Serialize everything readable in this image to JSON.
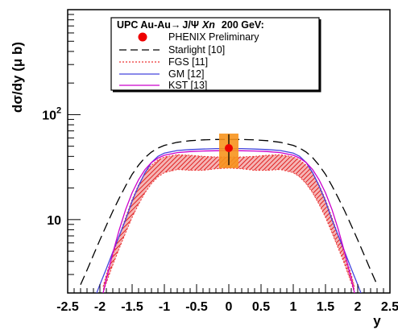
{
  "chart_data": {
    "type": "line",
    "xlabel": "y",
    "ylabel": "dσ/dy (μ b)",
    "xlim": [
      -2.5,
      2.5
    ],
    "ylim": [
      2,
      1000
    ],
    "y_scale": "log",
    "grid": false,
    "legend_position": "top-right",
    "x_ticks": [
      "-2.5",
      "-2",
      "-1.5",
      "-1",
      "-0.5",
      "0",
      "0.5",
      "1",
      "1.5",
      "2",
      "2.5"
    ],
    "y_ticks": [
      {
        "label": "10",
        "value": 10
      },
      {
        "label": "10",
        "sup": "2",
        "value": 100
      }
    ],
    "legend": {
      "title": {
        "prefix": "UPC Au-Au",
        "arrow": "→",
        "psi": "J/Ψ",
        "xn": "Xn",
        "energy": "200 GeV:"
      },
      "entries": [
        "PHENIX Preliminary",
        "Starlight [10]",
        "FGS [11]",
        "GM [12]",
        "KST [13]"
      ]
    },
    "data_point": {
      "name": "PHENIX Preliminary",
      "x": 0,
      "y": 48,
      "stat_err": [
        33,
        65
      ],
      "sys_box_y": [
        31,
        66
      ],
      "sys_box_x": [
        -0.15,
        0.15
      ],
      "color": "#ee0000",
      "box_color": "#f7941d"
    },
    "series": [
      {
        "name": "Starlight [10]",
        "color": "#000000",
        "style": "dashed",
        "x": [
          -2.3,
          -2.2,
          -2.1,
          -2.0,
          -1.9,
          -1.8,
          -1.7,
          -1.6,
          -1.5,
          -1.4,
          -1.3,
          -1.2,
          -1.1,
          -1.0,
          -0.8,
          -0.6,
          -0.4,
          -0.2,
          0,
          0.2,
          0.4,
          0.6,
          0.8,
          1.0,
          1.1,
          1.2,
          1.3,
          1.4,
          1.5,
          1.6,
          1.7,
          1.8,
          1.9,
          2.0,
          2.1,
          2.2,
          2.3
        ],
        "y": [
          2.4,
          3.3,
          4.6,
          6.4,
          8.8,
          12,
          16,
          21,
          27,
          33,
          39,
          44,
          48,
          51,
          54.5,
          56.5,
          57.5,
          58,
          58,
          58,
          57.5,
          56.5,
          54.5,
          51,
          48,
          44,
          39,
          33,
          27,
          21,
          16,
          12,
          8.8,
          6.4,
          4.6,
          3.3,
          2.4
        ]
      },
      {
        "name": "GM [12]",
        "color": "#4444dd",
        "style": "solid",
        "x": [
          -2.05,
          -2.0,
          -1.9,
          -1.8,
          -1.7,
          -1.6,
          -1.5,
          -1.4,
          -1.3,
          -1.2,
          -1.1,
          -1.0,
          -0.8,
          -0.6,
          -0.4,
          -0.2,
          0,
          0.2,
          0.4,
          0.6,
          0.8,
          1.0,
          1.1,
          1.2,
          1.3,
          1.4,
          1.5,
          1.6,
          1.7,
          1.8,
          1.9,
          2.0,
          2.05
        ],
        "y": [
          2.0,
          2.4,
          3.4,
          4.9,
          7.0,
          10,
          15,
          21,
          28,
          35,
          40,
          43,
          45.5,
          46.5,
          47,
          47.5,
          47.5,
          47.5,
          47,
          46.5,
          45.5,
          43,
          40,
          35,
          28,
          21,
          15,
          10,
          7.0,
          4.9,
          3.4,
          2.4,
          2.0
        ]
      },
      {
        "name": "KST [13]",
        "color": "#cc00cc",
        "style": "solid",
        "x": [
          -1.95,
          -1.9,
          -1.8,
          -1.7,
          -1.6,
          -1.5,
          -1.4,
          -1.3,
          -1.2,
          -1.1,
          -1.0,
          -0.8,
          -0.6,
          -0.4,
          -0.2,
          0,
          0.2,
          0.4,
          0.6,
          0.8,
          1.0,
          1.1,
          1.2,
          1.3,
          1.4,
          1.5,
          1.6,
          1.7,
          1.8,
          1.9,
          1.95
        ],
        "y": [
          2.0,
          2.7,
          4.8,
          8.0,
          12.5,
          18,
          24,
          30,
          35,
          38.5,
          41,
          43.5,
          44.5,
          45,
          45.3,
          45.5,
          45.3,
          45,
          44.5,
          43.5,
          41,
          38.5,
          35,
          30,
          24,
          18,
          12.5,
          8.0,
          4.8,
          2.7,
          2.0
        ]
      }
    ],
    "bands": [
      {
        "name": "FGS [11]",
        "color": "#ee3333",
        "x": [
          -1.95,
          -1.9,
          -1.8,
          -1.7,
          -1.6,
          -1.5,
          -1.4,
          -1.3,
          -1.2,
          -1.1,
          -1.0,
          -0.8,
          -0.6,
          -0.4,
          -0.2,
          0,
          0.2,
          0.4,
          0.6,
          0.8,
          1.0,
          1.1,
          1.2,
          1.3,
          1.4,
          1.5,
          1.6,
          1.7,
          1.8,
          1.9,
          1.95
        ],
        "lower": [
          2.0,
          2.5,
          3.7,
          5.3,
          7.5,
          10.5,
          14,
          18,
          22,
          25.5,
          28,
          30,
          29.5,
          29.5,
          30.5,
          31,
          30.5,
          29.5,
          29.5,
          30,
          28,
          25.5,
          22,
          18,
          14,
          10.5,
          7.5,
          5.3,
          3.7,
          2.5,
          2.0
        ],
        "upper": [
          2.3,
          3.0,
          4.6,
          7.0,
          10.5,
          15.5,
          21.5,
          28,
          33,
          37,
          39.5,
          41.5,
          41,
          40,
          39.5,
          39.5,
          39.5,
          40,
          41,
          41.5,
          39.5,
          37,
          33,
          28,
          21.5,
          15.5,
          10.5,
          7.0,
          4.6,
          3.0,
          2.3
        ]
      }
    ]
  }
}
